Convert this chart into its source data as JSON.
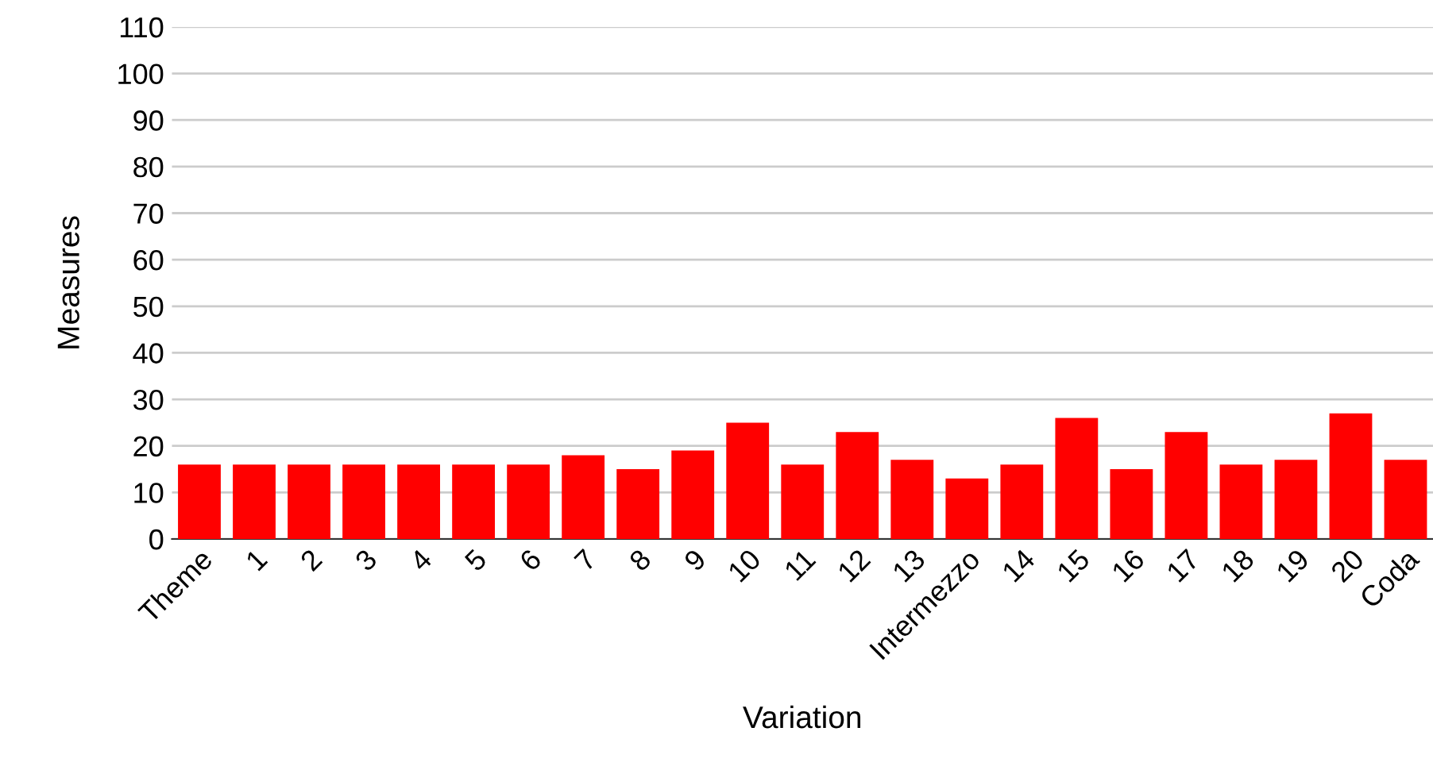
{
  "chart_data": {
    "type": "bar",
    "xlabel": "Variation",
    "ylabel": "Measures",
    "categories": [
      "Theme",
      "1",
      "2",
      "3",
      "4",
      "5",
      "6",
      "7",
      "8",
      "9",
      "10",
      "11",
      "12",
      "13",
      "Intermezzo",
      "14",
      "15",
      "16",
      "17",
      "18",
      "19",
      "20",
      "Coda"
    ],
    "values": [
      16,
      16,
      16,
      16,
      16,
      16,
      16,
      18,
      15,
      19,
      25,
      16,
      23,
      17,
      13,
      16,
      26,
      15,
      23,
      16,
      17,
      27,
      17
    ],
    "color": "#ff0000",
    "ylim": [
      0,
      110
    ],
    "yticks": [
      0,
      10,
      20,
      30,
      40,
      50,
      60,
      70,
      80,
      90,
      100,
      110
    ],
    "grid": "y"
  }
}
